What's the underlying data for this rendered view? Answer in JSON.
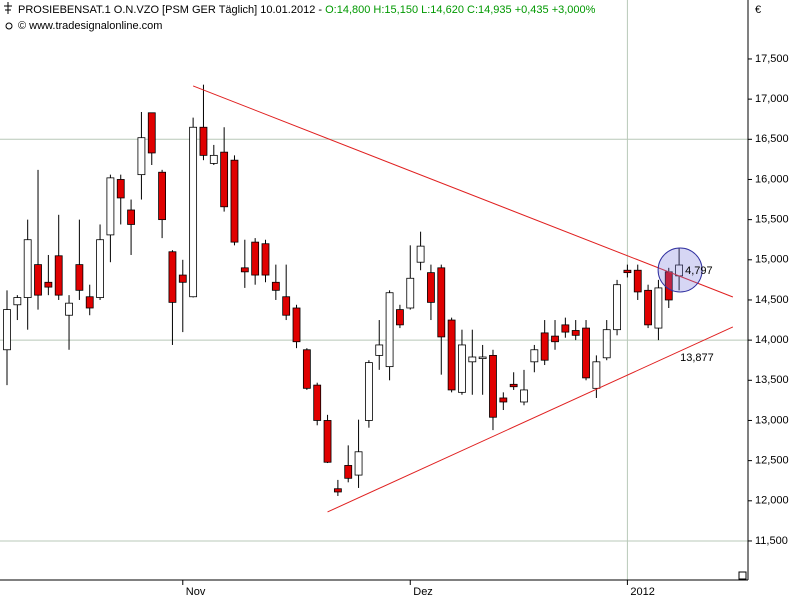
{
  "chart_data": {
    "type": "candlestick",
    "title": "PROSIEBENSAT.1 O.N.VZO [PSM GER  Täglich] 10.01.2012 -",
    "subtitle": "O:14,800 H:15,150 L:14,620 C:14,935 +0,435 +3,000%",
    "source": "© www.tradesignalonline.com",
    "y_axis_label": "€",
    "categories": [
      null,
      null,
      null,
      null,
      null,
      null,
      null,
      null,
      null,
      null,
      null,
      null,
      null,
      null,
      null,
      null,
      null,
      "Nov",
      null,
      null,
      null,
      null,
      null,
      null,
      null,
      null,
      null,
      null,
      null,
      null,
      null,
      null,
      null,
      null,
      null,
      null,
      null,
      null,
      null,
      "Dez",
      null,
      null,
      null,
      null,
      null,
      null,
      null,
      null,
      null,
      null,
      null,
      null,
      null,
      null,
      null,
      null,
      null,
      null,
      null,
      null,
      "2012",
      null,
      null,
      null,
      null,
      null
    ],
    "open": [
      13.88,
      14.44,
      14.53,
      14.94,
      14.72,
      15.05,
      14.31,
      14.94,
      14.54,
      14.53,
      15.31,
      16.0,
      15.62,
      16.06,
      16.83,
      16.09,
      15.1,
      14.81,
      14.54,
      16.65,
      16.2,
      16.34,
      16.24,
      14.9,
      15.22,
      15.2,
      14.72,
      14.54,
      14.4,
      13.88,
      13.44,
      13.0,
      12.15,
      12.44,
      12.32,
      13.0,
      13.81,
      13.67,
      14.38,
      14.4,
      14.97,
      14.84,
      14.9,
      14.25,
      13.35,
      13.73,
      13.77,
      13.81,
      13.28,
      13.45,
      13.23,
      13.73,
      14.09,
      14.05,
      14.19,
      14.12,
      14.15,
      13.4,
      13.78,
      14.13,
      14.87,
      14.87,
      14.62,
      14.15,
      14.85,
      14.8
    ],
    "high": [
      14.62,
      14.56,
      15.5,
      16.12,
      15.06,
      15.56,
      14.56,
      15.5,
      14.69,
      15.44,
      16.06,
      16.06,
      15.75,
      16.84,
      16.83,
      16.12,
      15.12,
      15.0,
      16.77,
      17.18,
      16.43,
      16.65,
      16.3,
      15.25,
      15.27,
      15.25,
      14.94,
      14.94,
      14.44,
      13.9,
      13.47,
      13.07,
      12.26,
      12.69,
      13.01,
      13.75,
      14.25,
      14.62,
      14.44,
      15.18,
      15.35,
      14.94,
      14.94,
      14.28,
      14.13,
      14.13,
      13.94,
      13.88,
      13.35,
      13.6,
      13.63,
      13.94,
      14.25,
      14.25,
      14.28,
      14.25,
      14.25,
      13.81,
      14.25,
      14.75,
      14.94,
      14.94,
      14.69,
      14.75,
      14.9,
      15.15
    ],
    "low": [
      13.44,
      14.25,
      14.13,
      14.38,
      14.56,
      14.5,
      13.88,
      14.5,
      14.31,
      14.5,
      14.97,
      15.44,
      15.06,
      15.75,
      16.18,
      15.27,
      13.94,
      14.1,
      14.53,
      16.24,
      16.18,
      15.6,
      15.18,
      14.65,
      14.69,
      14.72,
      14.5,
      14.25,
      13.9,
      13.38,
      12.94,
      12.47,
      12.06,
      12.23,
      12.16,
      12.91,
      13.63,
      13.5,
      14.15,
      14.38,
      14.87,
      14.25,
      13.57,
      13.35,
      13.32,
      13.32,
      13.32,
      12.88,
      13.13,
      13.38,
      13.19,
      13.6,
      13.69,
      13.88,
      14.03,
      14.0,
      13.5,
      13.28,
      13.75,
      14.06,
      14.78,
      14.5,
      14.15,
      14.0,
      14.4,
      14.62
    ],
    "close": [
      14.38,
      14.53,
      15.25,
      14.56,
      14.66,
      14.56,
      14.46,
      14.62,
      14.4,
      15.25,
      16.02,
      15.77,
      15.44,
      16.52,
      16.33,
      15.5,
      14.47,
      14.72,
      16.65,
      16.3,
      16.3,
      15.66,
      15.22,
      14.85,
      14.81,
      14.81,
      14.62,
      14.31,
      13.98,
      13.4,
      13.0,
      12.48,
      12.11,
      12.28,
      12.61,
      13.72,
      13.94,
      14.59,
      14.19,
      14.77,
      15.17,
      14.47,
      14.04,
      13.38,
      13.94,
      13.79,
      13.79,
      13.04,
      13.23,
      13.42,
      13.38,
      13.88,
      13.75,
      13.98,
      14.1,
      14.06,
      13.53,
      13.73,
      14.13,
      14.69,
      14.84,
      14.6,
      14.19,
      14.65,
      14.5,
      14.935
    ],
    "up_color": "#ffffff",
    "down_color": "#e00000",
    "trendline_color": "#e02020",
    "trendlines": [
      {
        "x": [
          18,
          70.2
        ],
        "values": [
          17.164,
          14.537
        ]
      },
      {
        "x": [
          31,
          70.2
        ],
        "values": [
          11.861,
          14.164
        ]
      }
    ],
    "annotations": [
      "4,797",
      "13,877"
    ],
    "ylim": [
      11.014,
      18.234
    ],
    "yticks": [
      {
        "value": 11.5,
        "label": "11,500"
      },
      {
        "value": 12,
        "label": "12,000"
      },
      {
        "value": 12.5,
        "label": "12,500"
      },
      {
        "value": 13,
        "label": "13,000"
      },
      {
        "value": 13.5,
        "label": "13,500"
      },
      {
        "value": 14,
        "label": "14,000"
      },
      {
        "value": 14.5,
        "label": "14,500"
      },
      {
        "value": 15,
        "label": "15,000"
      },
      {
        "value": 15.5,
        "label": "15,500"
      },
      {
        "value": 16,
        "label": "16,000"
      },
      {
        "value": 16.5,
        "label": "16,500"
      },
      {
        "value": 17,
        "label": "17,000"
      },
      {
        "value": 17.5,
        "label": "17,500"
      }
    ],
    "grid_every": 5
  }
}
